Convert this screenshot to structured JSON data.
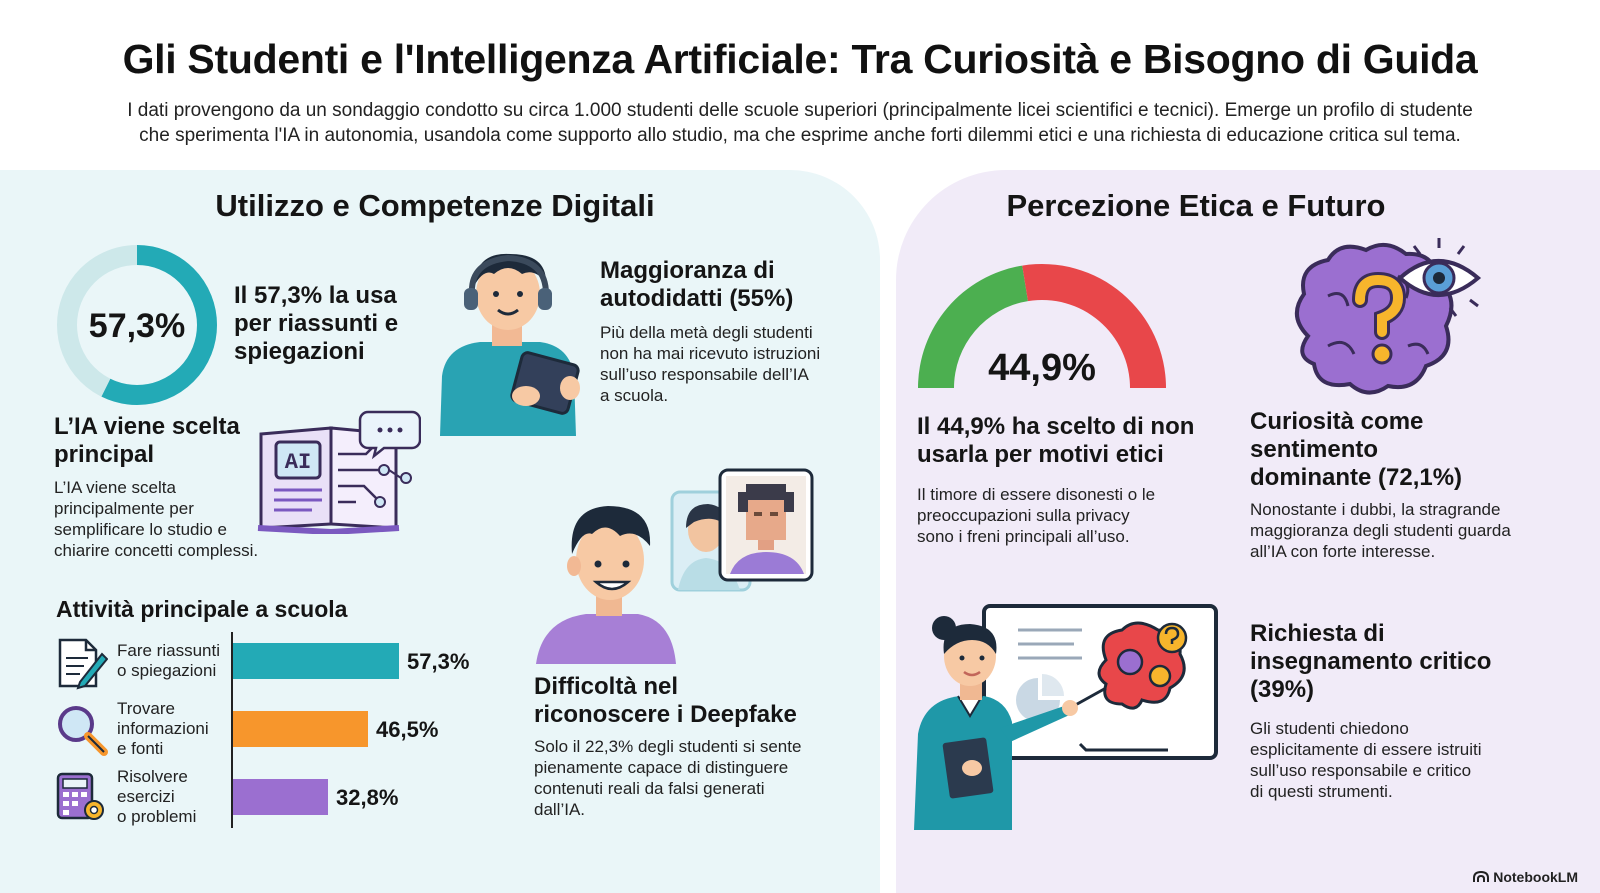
{
  "header": {
    "title": "Gli Studenti e l'Intelligenza Artificiale: Tra Curiosità e Bisogno di Guida",
    "subtitle_line1": "I dati provengono da un sondaggio condotto su circa 1.000 studenti delle scuole superiori (principalmente licei scientifici e tecnici). Emerge un profilo di studente",
    "subtitle_line2": "che sperimenta l'IA in autonomia, usandola come supporto allo studio, ma che esprime anche forti dilemmi etici e una richiesta di educazione critica sul tema."
  },
  "left": {
    "section_title": "Utilizzo e Competenze Digitali",
    "donut": {
      "value_label": "57,3%",
      "value": 57.3,
      "color": "#23aab6",
      "track_color": "#cde8ea"
    },
    "donut_caption": [
      "Il 57,3% la usa",
      "per riassunti e",
      "spiegazioni"
    ],
    "ia_title": [
      "L’IA viene scelta",
      "principal"
    ],
    "ia_text": [
      "L’IA viene scelta",
      "principalmente per",
      "semplificare lo studio e",
      "chiarire concetti complessi."
    ],
    "book_icon_text": "AI",
    "autodidact_title": [
      "Maggioranza di",
      "autodidatti (55%)"
    ],
    "autodidact_text": [
      "Più della metà degli studenti",
      "non ha mai ricevuto istruzioni",
      "sull’uso responsabile dell’IA",
      "a scuola."
    ],
    "deepfake_title": [
      "Difficoltà nel",
      "riconoscere i Deepfake"
    ],
    "deepfake_text": [
      "Solo il 22,3% degli studenti si sente",
      "pienamente capace di distinguere",
      "contenuti reali da falsi generati",
      "dall’IA."
    ]
  },
  "chart_data": {
    "type": "bar",
    "title": "Attività principale a scuola",
    "categories": [
      [
        "Fare riassunti",
        "o spiegazioni"
      ],
      [
        "Trovare",
        "informazioni",
        "e fonti"
      ],
      [
        "Risolvere",
        "esercizi",
        "o problemi"
      ]
    ],
    "values": [
      57.3,
      46.5,
      32.8
    ],
    "value_labels": [
      "57,3%",
      "46,5%",
      "32,8%"
    ],
    "colors": [
      "#23aab6",
      "#f7962c",
      "#9b6fd0"
    ],
    "icons": [
      "document-pen-icon",
      "magnifier-icon",
      "calculator-gear-icon"
    ],
    "orientation": "horizontal"
  },
  "right": {
    "section_title": "Percezione Etica e Futuro",
    "gauge": {
      "value_label": "44,9%",
      "value": 44.9,
      "green": "#4caf50",
      "red": "#e8474a"
    },
    "ethics_title": [
      "Il 44,9% ha scelto di non",
      "usarla per motivi etici"
    ],
    "ethics_text": [
      "Il timore di essere disonesti o le",
      "preoccupazioni sulla privacy",
      "sono i freni principali all’uso."
    ],
    "curiosity_title": [
      "Curiosità come",
      "sentimento",
      "dominante (72,1%)"
    ],
    "curiosity_text": [
      "Nonostante i dubbi, la stragrande",
      "maggioranza degli studenti guarda",
      "all’IA con forte interesse."
    ],
    "teaching_title": [
      "Richiesta di",
      "insegnamento critico",
      "(39%)"
    ],
    "teaching_text": [
      "Gli studenti chiedono",
      "esplicitamente di essere istruiti",
      "sull’uso responsabile e critico",
      "di questi strumenti."
    ]
  },
  "footer": {
    "brand": "NotebookLM"
  }
}
